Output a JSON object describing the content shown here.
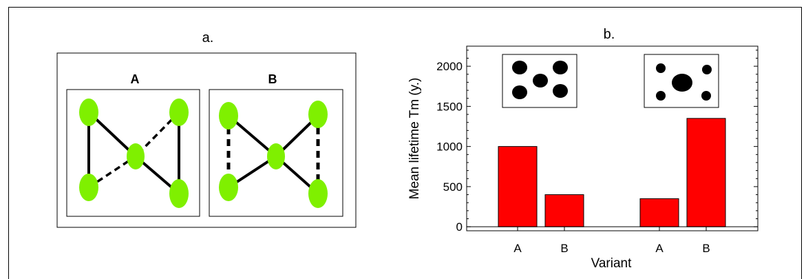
{
  "panel_a": {
    "label": "a.",
    "diagram_a": {
      "title": "A"
    },
    "diagram_b": {
      "title": "B"
    },
    "node_color": "#7ff000"
  },
  "chart_data": {
    "type": "bar",
    "panel_label": "b.",
    "xlabel": "Variant",
    "ylabel": "Mean lifetime Tm (y.)",
    "ylim": [
      -50,
      2250
    ],
    "yticks": [
      0,
      500,
      1000,
      1500,
      2000
    ],
    "bar_color": "#ff0000",
    "groups": [
      {
        "bars": [
          {
            "category": "A",
            "value": 1000
          },
          {
            "category": "B",
            "value": 400
          }
        ]
      },
      {
        "bars": [
          {
            "category": "A",
            "value": 350
          },
          {
            "category": "B",
            "value": 1350
          }
        ]
      }
    ],
    "grid": false,
    "legend": "none"
  }
}
